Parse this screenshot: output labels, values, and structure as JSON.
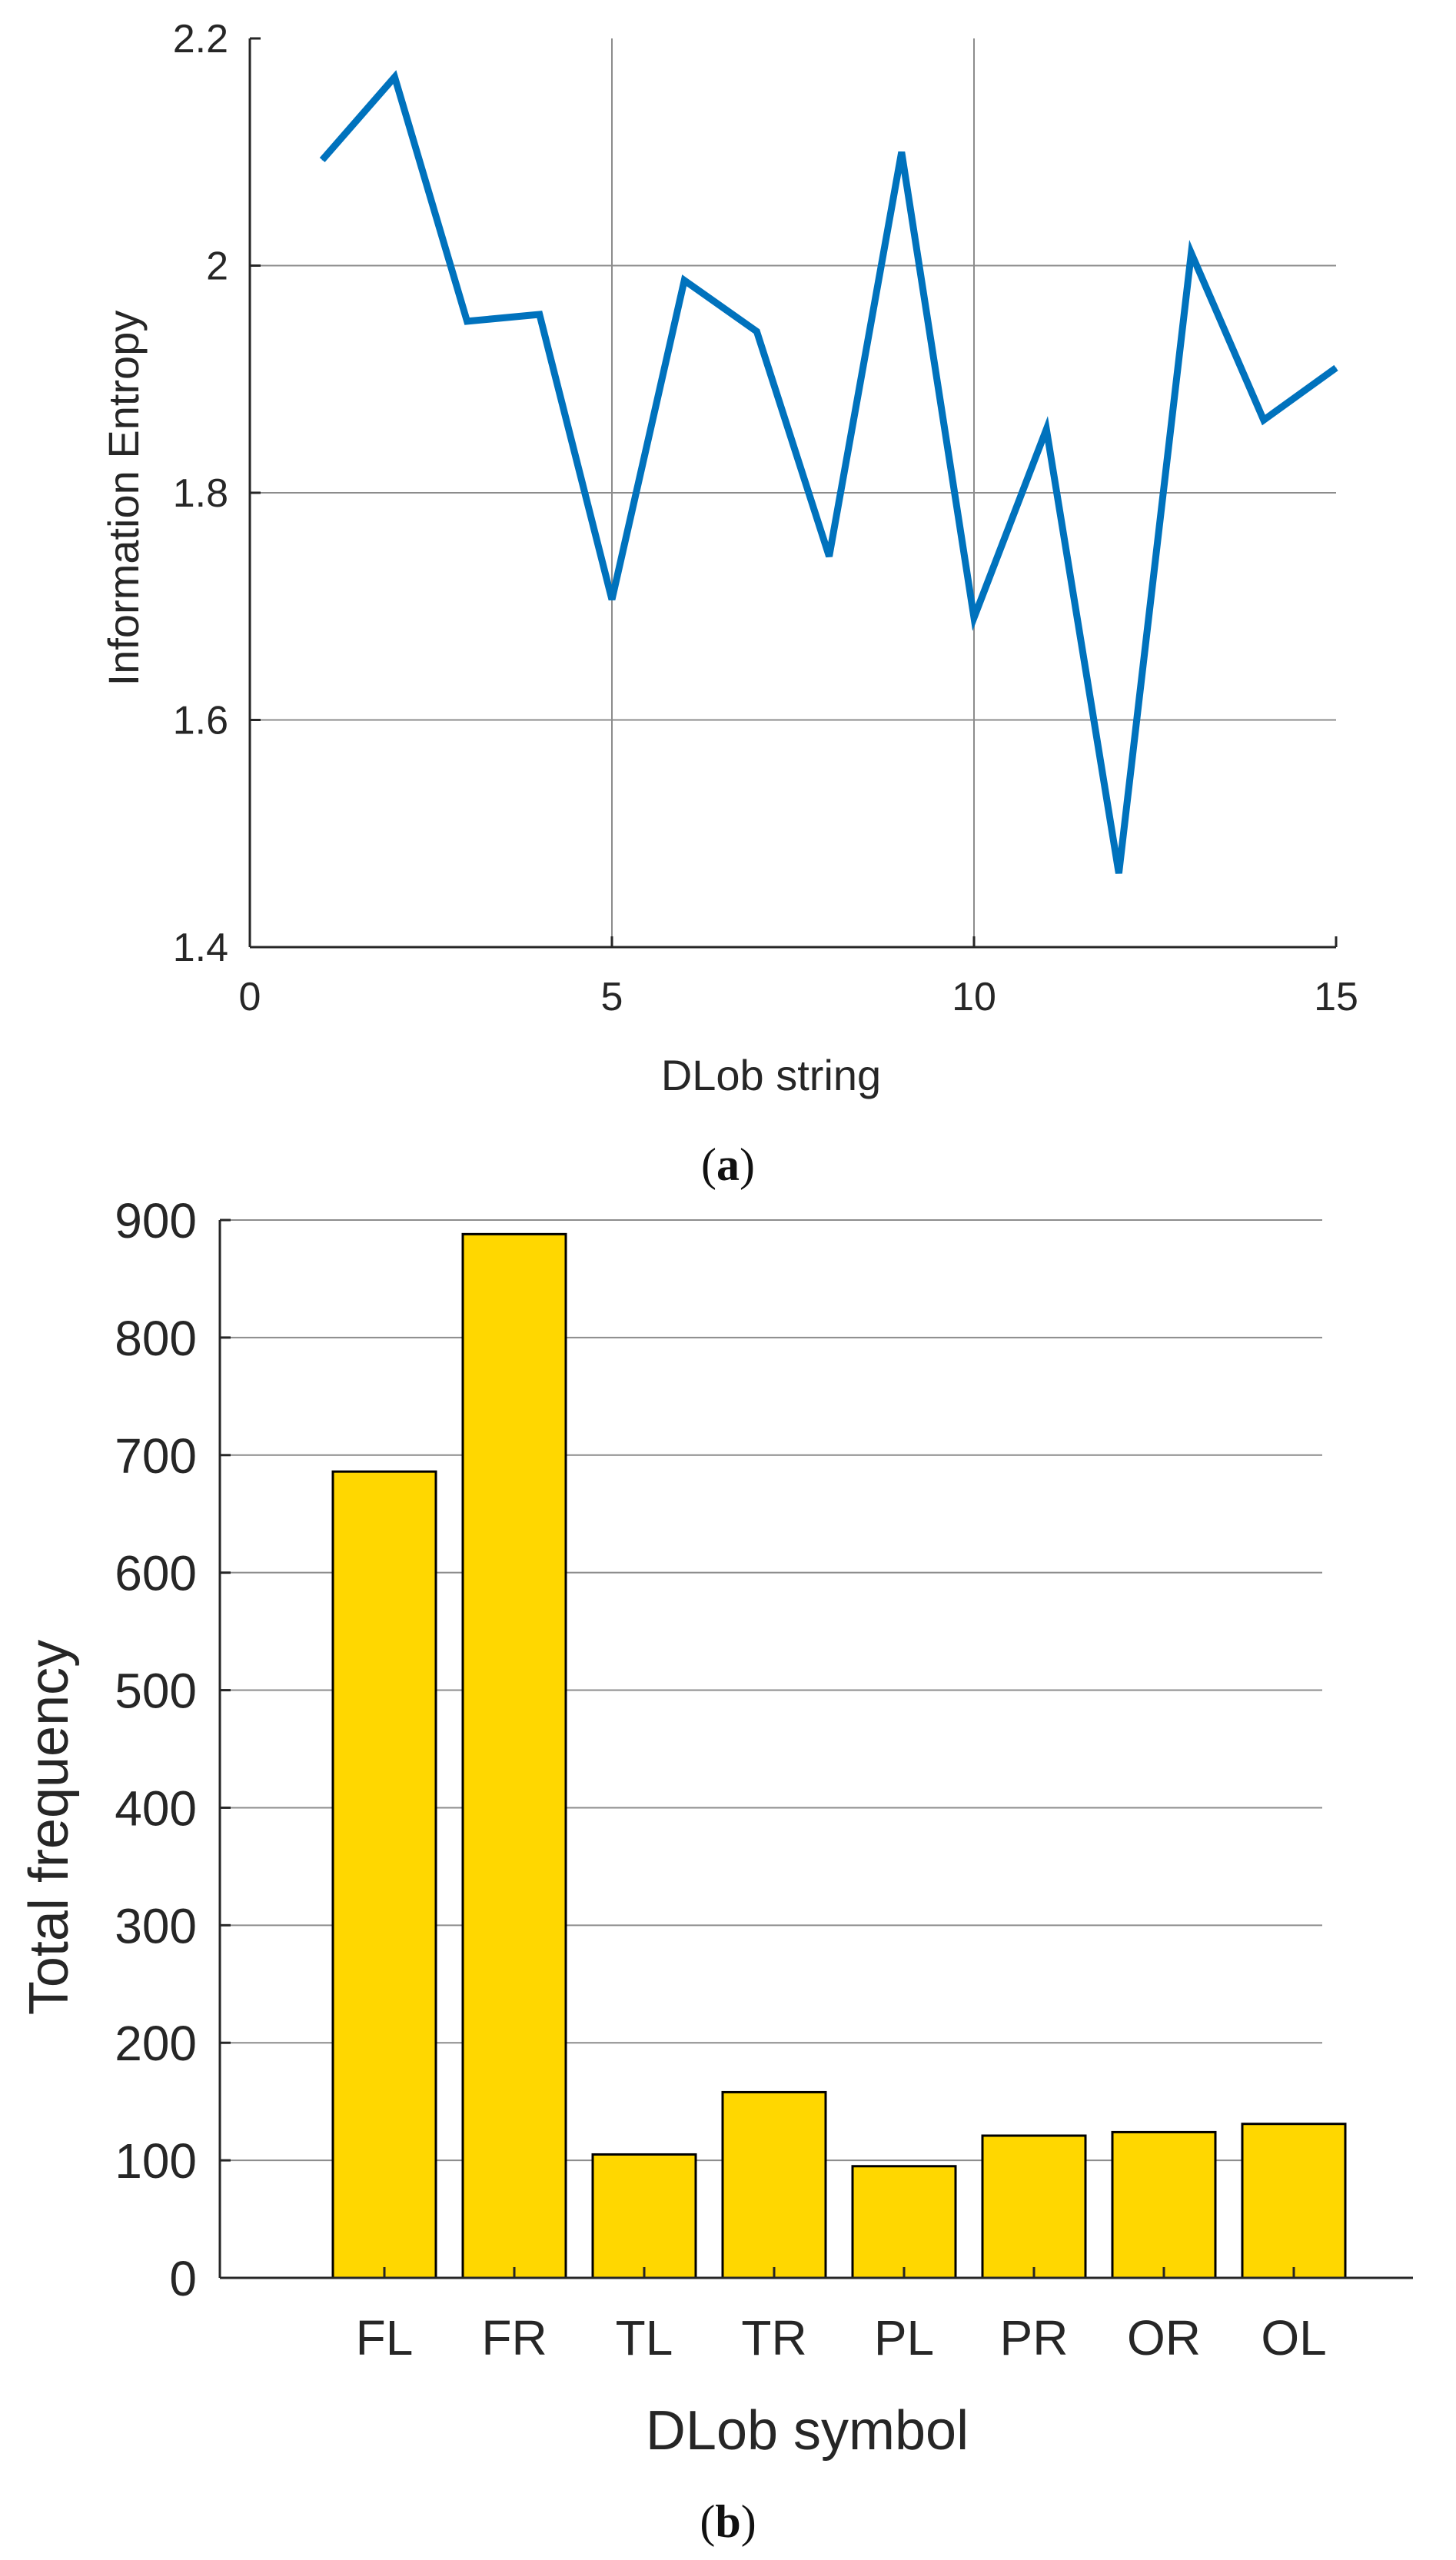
{
  "chart_data": [
    {
      "type": "line",
      "caption_label": "a",
      "xlabel": "DLob string",
      "ylabel": "Information Entropy",
      "xlim": [
        0,
        15
      ],
      "ylim": [
        1.4,
        2.2
      ],
      "x_ticks": [
        "0",
        "5",
        "10",
        "15"
      ],
      "y_ticks": [
        "1.4",
        "1.6",
        "1.8",
        "2",
        "2.2"
      ],
      "grid": true,
      "color": "#0072BD",
      "series": [
        {
          "x": [
            1,
            2,
            3,
            4,
            5,
            6,
            7,
            8,
            9,
            10,
            11,
            12,
            13,
            14,
            15
          ],
          "values": [
            2.093,
            2.166,
            1.951,
            1.957,
            1.706,
            1.987,
            1.942,
            1.744,
            2.1,
            1.69,
            1.856,
            1.465,
            2.011,
            1.864,
            1.91
          ]
        }
      ]
    },
    {
      "type": "bar",
      "caption_label": "b",
      "xlabel": "DLob symbol",
      "ylabel": "Total frequency",
      "categories": [
        "FL",
        "FR",
        "TL",
        "TR",
        "PL",
        "PR",
        "OR",
        "OL"
      ],
      "values": [
        686,
        888,
        105,
        158,
        95,
        121,
        124,
        131
      ],
      "ylim": [
        0,
        900
      ],
      "y_ticks": [
        "0",
        "100",
        "200",
        "300",
        "400",
        "500",
        "600",
        "700",
        "800",
        "900"
      ],
      "grid": true,
      "color": "#FFD700"
    }
  ]
}
